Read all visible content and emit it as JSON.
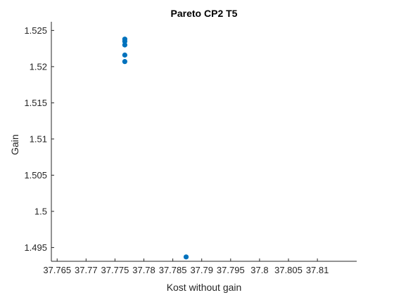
{
  "chart_data": {
    "type": "scatter",
    "title": "Pareto CP2 T5",
    "xlabel": "Kost without gain",
    "ylabel": "Gain",
    "xlim": [
      37.764,
      37.8168
    ],
    "ylim": [
      1.4931,
      1.5262
    ],
    "xticks": [
      "37.765",
      "37.77",
      "37.775",
      "37.78",
      "37.785",
      "37.79",
      "37.795",
      "37.8",
      "37.805",
      "37.81"
    ],
    "xtick_values": [
      37.765,
      37.77,
      37.775,
      37.78,
      37.785,
      37.79,
      37.795,
      37.8,
      37.805,
      37.81
    ],
    "yticks": [
      "1.495",
      "1.5",
      "1.505",
      "1.51",
      "1.515",
      "1.52",
      "1.525"
    ],
    "ytick_values": [
      1.495,
      1.5,
      1.505,
      1.51,
      1.515,
      1.52,
      1.525
    ],
    "grid": false,
    "marker_color": "#0072BD",
    "series": [
      {
        "points": [
          {
            "x": 37.7767,
            "y": 1.5238
          },
          {
            "x": 37.7767,
            "y": 1.5235
          },
          {
            "x": 37.7767,
            "y": 1.523
          },
          {
            "x": 37.7767,
            "y": 1.5216
          },
          {
            "x": 37.7767,
            "y": 1.5207
          },
          {
            "x": 37.7873,
            "y": 1.4937
          }
        ]
      }
    ]
  }
}
